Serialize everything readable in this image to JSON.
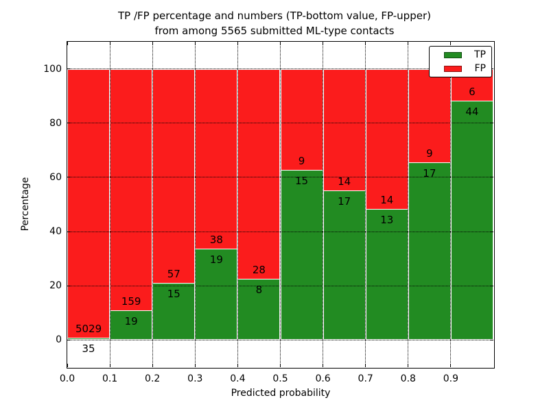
{
  "chart_data": {
    "type": "bar",
    "stacked": true,
    "title": "TP /FP percentage and numbers (TP-bottom value, FP-upper)",
    "subtitle": "from among 5565 submitted ML-type contacts",
    "xlabel": "Predicted probability",
    "ylabel": "Percentage",
    "total_contacts": 5565,
    "xlim": [
      0.0,
      1.0
    ],
    "ylim": [
      -10,
      110
    ],
    "x_tick_values": [
      0.0,
      0.1,
      0.2,
      0.3,
      0.4,
      0.5,
      0.6,
      0.7,
      0.8,
      0.9
    ],
    "x_tick_labels": [
      "0.0",
      "0.1",
      "0.2",
      "0.3",
      "0.4",
      "0.5",
      "0.6",
      "0.7",
      "0.8",
      "0.9"
    ],
    "y_ticks": [
      0,
      20,
      40,
      60,
      80,
      100
    ],
    "grid": "dotted",
    "legend_position": "upper-right",
    "bins": [
      "0.0-0.1",
      "0.1-0.2",
      "0.2-0.3",
      "0.3-0.4",
      "0.4-0.5",
      "0.5-0.6",
      "0.6-0.7",
      "0.7-0.8",
      "0.8-0.9",
      "0.9-1.0"
    ],
    "series": [
      {
        "name": "TP",
        "color": "#228b22",
        "counts": [
          35,
          19,
          15,
          19,
          8,
          15,
          17,
          13,
          17,
          44
        ],
        "percentages": [
          0.69,
          10.67,
          20.83,
          33.33,
          22.22,
          62.5,
          54.84,
          48.15,
          65.38,
          88.0
        ]
      },
      {
        "name": "FP",
        "color": "#fb1c1c",
        "counts": [
          5029,
          159,
          57,
          38,
          28,
          9,
          14,
          14,
          9,
          6
        ],
        "percentages": [
          99.31,
          89.33,
          79.17,
          66.67,
          77.78,
          37.5,
          45.16,
          51.85,
          34.62,
          12.0
        ]
      }
    ]
  }
}
